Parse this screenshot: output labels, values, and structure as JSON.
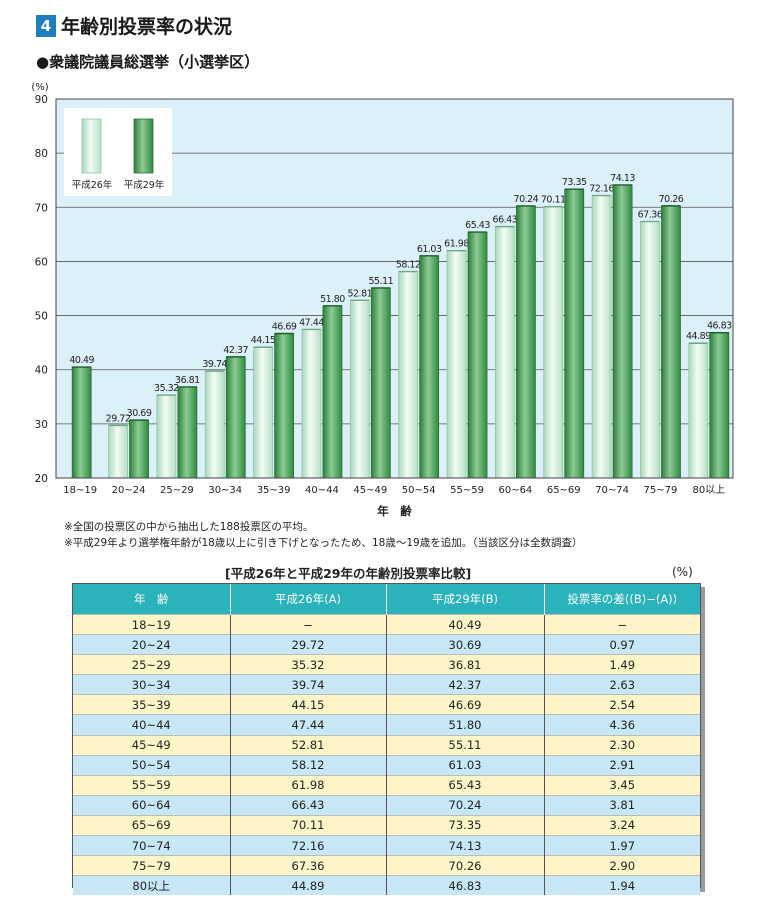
{
  "section": {
    "number": "4",
    "title": "年齢別投票率の状況"
  },
  "subtitle": "●衆議院議員総選挙（小選挙区）",
  "chart_data": {
    "type": "bar",
    "ylabel": "(%)",
    "xlabel": "年　齢",
    "ylim": [
      20,
      90
    ],
    "yticks": [
      20,
      30,
      40,
      50,
      60,
      70,
      80,
      90
    ],
    "grid": true,
    "legend_position": "top-left",
    "categories": [
      "18~19",
      "20~24",
      "25~29",
      "30~34",
      "35~39",
      "40~44",
      "45~49",
      "50~54",
      "55~59",
      "60~64",
      "65~69",
      "70~74",
      "75~79",
      "80以上"
    ],
    "series": [
      {
        "name": "平成26年",
        "color": "#d9f0e3",
        "values": [
          null,
          29.72,
          35.32,
          39.74,
          44.15,
          47.44,
          52.81,
          58.12,
          61.98,
          66.43,
          70.11,
          72.16,
          67.36,
          44.89
        ],
        "labels": [
          "",
          "29.72",
          "35.32",
          "39.74",
          "44.15",
          "47.44",
          "52.81",
          "58.12",
          "61.98",
          "66.43",
          "70.11",
          "72.16",
          "67.36",
          "44.89"
        ]
      },
      {
        "name": "平成29年",
        "color": "#3e9a4e",
        "values": [
          40.49,
          30.69,
          36.81,
          42.37,
          46.69,
          51.8,
          55.11,
          61.03,
          65.43,
          70.24,
          73.35,
          74.13,
          70.26,
          46.83
        ],
        "labels": [
          "40.49",
          "30.69",
          "36.81",
          "42.37",
          "46.69",
          "51.80",
          "55.11",
          "61.03",
          "65.43",
          "70.24",
          "73.35",
          "74.13",
          "70.26",
          "46.83"
        ]
      }
    ]
  },
  "notes": [
    "※全国の投票区の中から抽出した188投票区の平均。",
    "※平成29年より選挙権年齢が18歳以上に引き下げとなったため、18歳～19歳を追加。（当該区分は全数調査）"
  ],
  "table": {
    "title": "[平成26年と平成29年の年齢別投票率比較]",
    "unit": "(%)",
    "headers": [
      "年　齢",
      "平成26年(A)",
      "平成29年(B)",
      "投票率の差((B)−(A))"
    ],
    "rows": [
      [
        "18~19",
        "−",
        "40.49",
        "−"
      ],
      [
        "20~24",
        "29.72",
        "30.69",
        "0.97"
      ],
      [
        "25~29",
        "35.32",
        "36.81",
        "1.49"
      ],
      [
        "30~34",
        "39.74",
        "42.37",
        "2.63"
      ],
      [
        "35~39",
        "44.15",
        "46.69",
        "2.54"
      ],
      [
        "40~44",
        "47.44",
        "51.80",
        "4.36"
      ],
      [
        "45~49",
        "52.81",
        "55.11",
        "2.30"
      ],
      [
        "50~54",
        "58.12",
        "61.03",
        "2.91"
      ],
      [
        "55~59",
        "61.98",
        "65.43",
        "3.45"
      ],
      [
        "60~64",
        "66.43",
        "70.24",
        "3.81"
      ],
      [
        "65~69",
        "70.11",
        "73.35",
        "3.24"
      ],
      [
        "70~74",
        "72.16",
        "74.13",
        "1.97"
      ],
      [
        "75~79",
        "67.36",
        "70.26",
        "2.90"
      ],
      [
        "80以上",
        "44.89",
        "46.83",
        "1.94"
      ]
    ]
  }
}
